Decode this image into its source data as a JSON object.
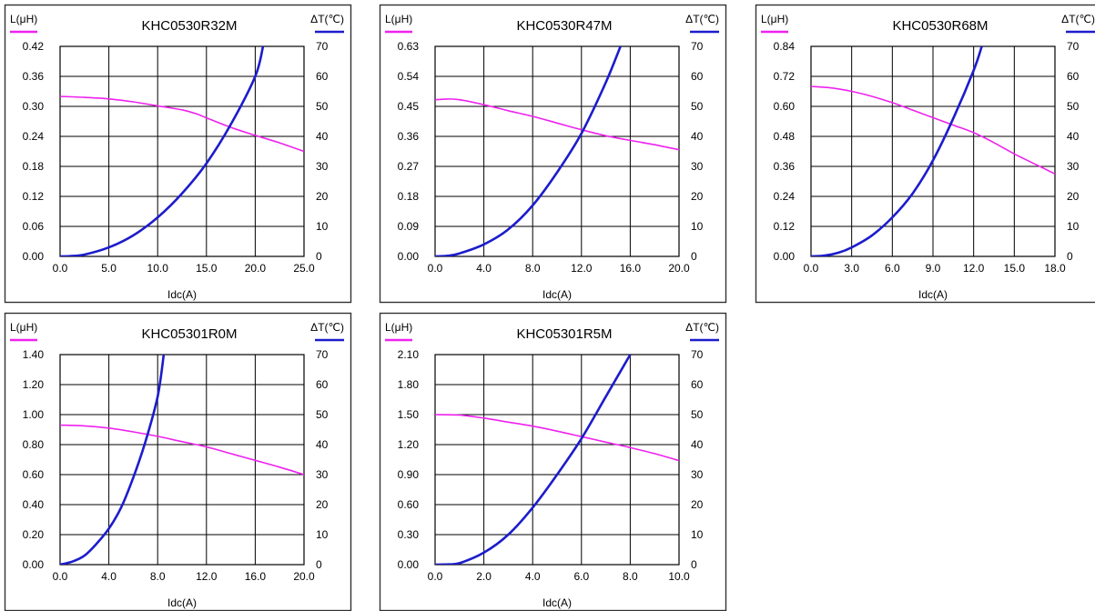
{
  "chart_data": [
    {
      "type": "line",
      "title": "KHC0530R32M",
      "xlabel": "Idc(A)",
      "ylabel_left": "L(μH)",
      "ylabel_right": "ΔT(℃)",
      "xlim": [
        0,
        25
      ],
      "xticks": [
        "0.0",
        "5.0",
        "10.0",
        "15.0",
        "20.0",
        "25.0"
      ],
      "ylim_left": [
        0,
        0.42
      ],
      "yticks_left": [
        "0.00",
        "0.06",
        "0.12",
        "0.18",
        "0.24",
        "0.30",
        "0.36",
        "0.42"
      ],
      "ylim_right": [
        0,
        70
      ],
      "yticks_right": [
        "0",
        "10",
        "20",
        "30",
        "40",
        "50",
        "60",
        "70"
      ],
      "grid": true,
      "legend": "top-left and top-right line swatches",
      "series": [
        {
          "axis": "left",
          "color": "#ee22ee",
          "x": [
            0,
            2.5,
            5,
            7.5,
            10,
            12.5,
            14,
            15,
            17.5,
            20,
            22.5,
            25
          ],
          "y": [
            0.32,
            0.318,
            0.315,
            0.309,
            0.301,
            0.293,
            0.285,
            0.277,
            0.258,
            0.242,
            0.227,
            0.21
          ]
        },
        {
          "axis": "right",
          "color": "#1c1ccc",
          "x": [
            0,
            1,
            2.5,
            5,
            7.5,
            10,
            12.5,
            15,
            17.5,
            20,
            20.8
          ],
          "y": [
            0,
            0.1,
            0.6,
            3,
            7,
            13,
            21,
            31,
            44,
            60,
            70
          ]
        }
      ]
    },
    {
      "type": "line",
      "title": "KHC0530R47M",
      "xlabel": "Idc(A)",
      "ylabel_left": "L(μH)",
      "ylabel_right": "ΔT(℃)",
      "xlim": [
        0,
        20
      ],
      "xticks": [
        "0.0",
        "4.0",
        "8.0",
        "12.0",
        "16.0",
        "20.0"
      ],
      "ylim_left": [
        0,
        0.63
      ],
      "yticks_left": [
        "0.00",
        "0.09",
        "0.18",
        "0.27",
        "0.36",
        "0.45",
        "0.54",
        "0.63"
      ],
      "ylim_right": [
        0,
        70
      ],
      "yticks_right": [
        "0",
        "10",
        "20",
        "30",
        "40",
        "50",
        "60",
        "70"
      ],
      "grid": true,
      "legend": "top-left and top-right line swatches",
      "series": [
        {
          "axis": "left",
          "color": "#ee22ee",
          "x": [
            0,
            1,
            2,
            4,
            6,
            8,
            10,
            12,
            14,
            16,
            18,
            20
          ],
          "y": [
            0.47,
            0.472,
            0.47,
            0.455,
            0.437,
            0.42,
            0.4,
            0.38,
            0.362,
            0.348,
            0.335,
            0.32
          ]
        },
        {
          "axis": "right",
          "color": "#1c1ccc",
          "x": [
            0,
            1,
            2,
            4,
            6,
            8,
            10,
            12,
            14,
            15.2
          ],
          "y": [
            0,
            0.2,
            1,
            4,
            9,
            17,
            28,
            41,
            58,
            70
          ]
        }
      ]
    },
    {
      "type": "line",
      "title": "KHC0530R68M",
      "xlabel": "Idc(A)",
      "ylabel_left": "L(μH)",
      "ylabel_right": "ΔT(℃)",
      "xlim": [
        0,
        18
      ],
      "xticks": [
        "0.0",
        "3.0",
        "6.0",
        "9.0",
        "12.0",
        "15.0",
        "18.0"
      ],
      "ylim_left": [
        0,
        0.84
      ],
      "yticks_left": [
        "0.00",
        "0.12",
        "0.24",
        "0.36",
        "0.48",
        "0.60",
        "0.72",
        "0.84"
      ],
      "ylim_right": [
        0,
        70
      ],
      "yticks_right": [
        "0",
        "10",
        "20",
        "30",
        "40",
        "50",
        "60",
        "70"
      ],
      "grid": true,
      "legend": "top-left and top-right line swatches",
      "series": [
        {
          "axis": "left",
          "color": "#ee22ee",
          "x": [
            0,
            1.5,
            3,
            4.5,
            6,
            7.5,
            9,
            10.5,
            12,
            13.5,
            15,
            16.5,
            18
          ],
          "y": [
            0.68,
            0.674,
            0.66,
            0.64,
            0.615,
            0.585,
            0.555,
            0.525,
            0.495,
            0.455,
            0.41,
            0.37,
            0.33
          ]
        },
        {
          "axis": "right",
          "color": "#1c1ccc",
          "x": [
            0,
            1,
            2,
            3,
            4.5,
            6,
            7.5,
            9,
            10.5,
            12,
            12.6
          ],
          "y": [
            0,
            0.3,
            1.2,
            3,
            7,
            13,
            21,
            32,
            46,
            62,
            70
          ]
        }
      ]
    },
    {
      "type": "line",
      "title": "KHC05301R0M",
      "xlabel": "Idc(A)",
      "ylabel_left": "L(μH)",
      "ylabel_right": "ΔT(℃)",
      "xlim": [
        0,
        20
      ],
      "xticks": [
        "0.0",
        "4.0",
        "8.0",
        "12.0",
        "16.0",
        "20.0"
      ],
      "ylim_left": [
        0,
        1.4
      ],
      "yticks_left": [
        "0.00",
        "0.20",
        "0.40",
        "0.60",
        "0.80",
        "1.00",
        "1.20",
        "1.40"
      ],
      "ylim_right": [
        0,
        70
      ],
      "yticks_right": [
        "0",
        "10",
        "20",
        "30",
        "40",
        "50",
        "60",
        "70"
      ],
      "grid": true,
      "legend": "top-left and top-right line swatches",
      "series": [
        {
          "axis": "left",
          "color": "#ee22ee",
          "x": [
            0,
            2,
            4,
            6,
            8,
            10,
            12,
            14,
            16,
            18,
            20
          ],
          "y": [
            0.93,
            0.925,
            0.91,
            0.885,
            0.855,
            0.82,
            0.785,
            0.74,
            0.695,
            0.65,
            0.6
          ]
        },
        {
          "axis": "right",
          "color": "#1c1ccc",
          "x": [
            0,
            1,
            2,
            3,
            4,
            5,
            6,
            7,
            8,
            8.5
          ],
          "y": [
            0,
            1,
            3,
            7,
            12,
            19,
            29,
            41,
            56,
            70
          ]
        }
      ]
    },
    {
      "type": "line",
      "title": "KHC05301R5M",
      "xlabel": "Idc(A)",
      "ylabel_left": "L(μH)",
      "ylabel_right": "ΔT(℃)",
      "xlim": [
        0,
        10
      ],
      "xticks": [
        "0.0",
        "2.0",
        "4.0",
        "6.0",
        "8.0",
        "10.0"
      ],
      "ylim_left": [
        0,
        2.1
      ],
      "yticks_left": [
        "0.00",
        "0.30",
        "0.60",
        "0.90",
        "1.20",
        "1.50",
        "1.80",
        "2.10"
      ],
      "ylim_right": [
        0,
        70
      ],
      "yticks_right": [
        "0",
        "10",
        "20",
        "30",
        "40",
        "50",
        "60",
        "70"
      ],
      "grid": true,
      "legend": "top-left and top-right line swatches",
      "series": [
        {
          "axis": "left",
          "color": "#ee22ee",
          "x": [
            0,
            1,
            2,
            3,
            4,
            5,
            6,
            7,
            8,
            9,
            10
          ],
          "y": [
            1.5,
            1.495,
            1.465,
            1.425,
            1.385,
            1.335,
            1.28,
            1.225,
            1.17,
            1.11,
            1.04
          ]
        },
        {
          "axis": "right",
          "color": "#1c1ccc",
          "x": [
            0,
            0.5,
            1,
            2,
            3,
            4,
            5,
            6,
            7,
            8
          ],
          "y": [
            0,
            0.1,
            0.5,
            4,
            10,
            19,
            30,
            42,
            56,
            70
          ]
        }
      ]
    }
  ]
}
